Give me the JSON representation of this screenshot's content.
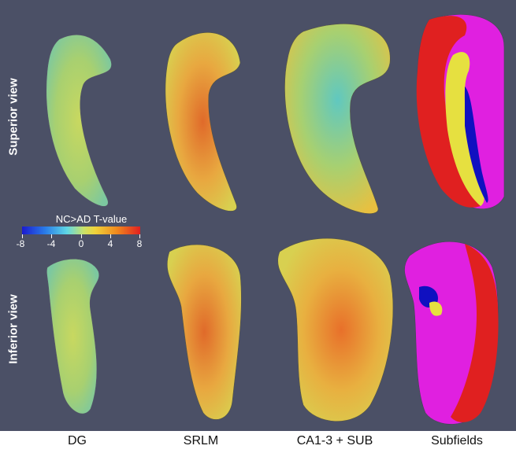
{
  "rows": {
    "superior": "Superior view",
    "inferior": "Inferior view"
  },
  "columns": [
    "DG",
    "SRLM",
    "CA1-3 + SUB",
    "Subfields"
  ],
  "colorbar": {
    "title": "NC>AD T-value",
    "ticks": [
      "-8",
      "-4",
      "0",
      "4",
      "8"
    ]
  },
  "colors": {
    "background": "#4b5066",
    "red": "#e02020",
    "magenta": "#e020e0",
    "yellow": "#e6e040",
    "green": "#40d030",
    "blue": "#1010c0"
  }
}
